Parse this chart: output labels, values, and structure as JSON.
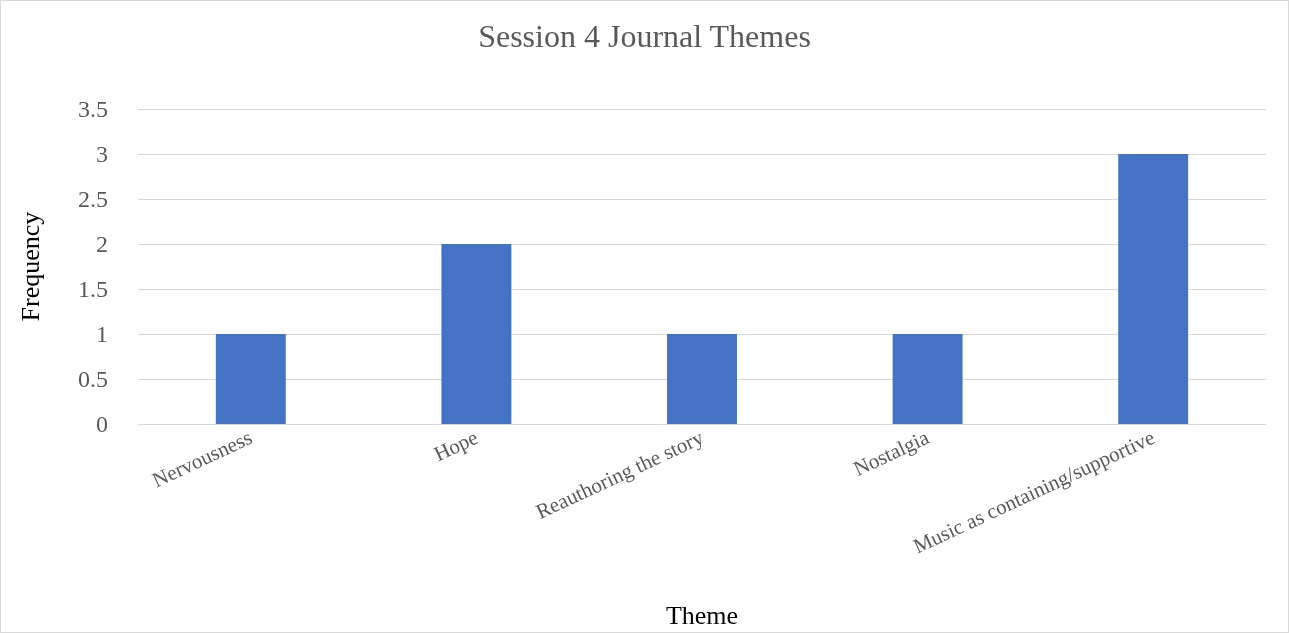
{
  "chart_data": {
    "type": "bar",
    "title": "Session 4 Journal Themes",
    "xlabel": "Theme",
    "ylabel": "Frequency",
    "categories": [
      "Nervousness",
      "Hope",
      "Reauthoring the story",
      "Nostalgia",
      "Music as containing/supportive"
    ],
    "values": [
      1,
      2,
      1,
      1,
      3
    ],
    "color": "#4472c4",
    "ylim": [
      0,
      3.5
    ],
    "yticks": [
      0,
      0.5,
      1,
      1.5,
      2,
      2.5,
      3,
      3.5
    ],
    "grid": "y"
  }
}
